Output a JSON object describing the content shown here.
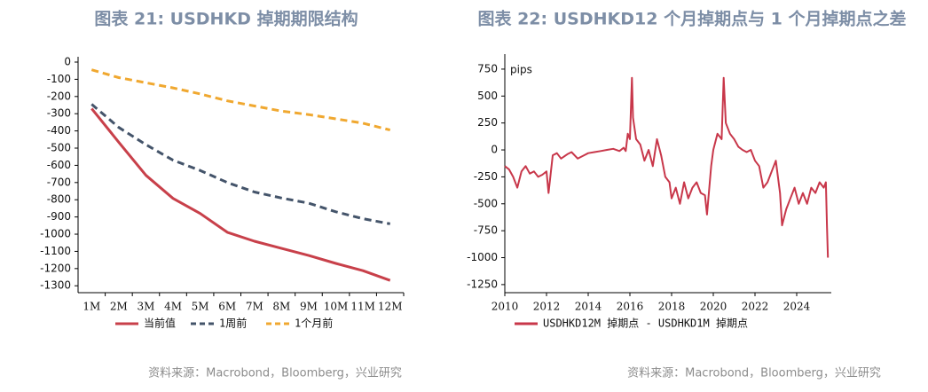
{
  "chart_data": [
    {
      "type": "line",
      "title": "图表 21: USDHKD 掉期期限结构",
      "categories": [
        "1M",
        "2M",
        "3M",
        "4M",
        "5M",
        "6M",
        "7M",
        "8M",
        "9M",
        "10M",
        "11M",
        "12M"
      ],
      "series": [
        {
          "name": "当前值",
          "color": "#c8404a",
          "dash": "solid",
          "values": [
            -270,
            -466,
            -658,
            -792,
            -880,
            -989,
            -1041,
            -1083,
            -1124,
            -1170,
            -1212,
            -1269
          ]
        },
        {
          "name": "1周前",
          "color": "#44546a",
          "dash": "dashed",
          "values": [
            -245,
            -380,
            -480,
            -570,
            -630,
            -700,
            -755,
            -790,
            -820,
            -870,
            -910,
            -940
          ]
        },
        {
          "name": "1个月前",
          "color": "#f0a830",
          "dash": "dashed",
          "values": [
            -45,
            -90,
            -120,
            -150,
            -185,
            -225,
            -255,
            -285,
            -305,
            -330,
            -355,
            -395
          ]
        }
      ],
      "ylim": [
        -1340,
        0
      ],
      "yticks": [
        0,
        -100,
        -200,
        -300,
        -400,
        -500,
        -600,
        -700,
        -800,
        -900,
        -1000,
        -1100,
        -1200,
        -1300
      ],
      "source": "资料来源：Macrobond，Bloomberg，兴业研究"
    },
    {
      "type": "line",
      "title": "图表 22: USDHKD12 个月掉期点与 1 个月掉期点之差",
      "y_label": "pips",
      "x": [
        2010.0,
        2010.2,
        2010.4,
        2010.6,
        2010.8,
        2011.0,
        2011.2,
        2011.4,
        2011.6,
        2011.8,
        2012.0,
        2012.1,
        2012.3,
        2012.5,
        2012.7,
        2013.0,
        2013.2,
        2013.5,
        2013.8,
        2014.0,
        2014.3,
        2014.6,
        2014.9,
        2015.2,
        2015.5,
        2015.7,
        2015.8,
        2015.9,
        2016.0,
        2016.1,
        2016.15,
        2016.3,
        2016.5,
        2016.7,
        2016.9,
        2017.1,
        2017.3,
        2017.5,
        2017.7,
        2017.9,
        2018.0,
        2018.2,
        2018.4,
        2018.6,
        2018.8,
        2019.0,
        2019.2,
        2019.4,
        2019.6,
        2019.7,
        2019.9,
        2020.0,
        2020.2,
        2020.4,
        2020.5,
        2020.6,
        2020.8,
        2021.0,
        2021.2,
        2021.4,
        2021.6,
        2021.8,
        2022.0,
        2022.2,
        2022.4,
        2022.6,
        2022.8,
        2023.0,
        2023.2,
        2023.3,
        2023.5,
        2023.7,
        2023.9,
        2024.1,
        2024.3,
        2024.5,
        2024.7,
        2024.9,
        2025.1,
        2025.3,
        2025.4,
        2025.45,
        2025.5
      ],
      "series": [
        {
          "name": "USDHKD12M 掉期点 - USDHKD1M 掉期点",
          "color": "#c8374a",
          "values": [
            -150,
            -180,
            -250,
            -350,
            -200,
            -150,
            -220,
            -200,
            -250,
            -230,
            -200,
            -400,
            -50,
            -30,
            -80,
            -40,
            -20,
            -80,
            -50,
            -30,
            -20,
            -10,
            0,
            10,
            -10,
            20,
            -10,
            150,
            100,
            670,
            300,
            100,
            50,
            -100,
            0,
            -150,
            100,
            -50,
            -250,
            -300,
            -450,
            -350,
            -500,
            -300,
            -450,
            -350,
            -300,
            -400,
            -420,
            -600,
            -150,
            0,
            150,
            100,
            670,
            250,
            150,
            100,
            30,
            0,
            -20,
            0,
            -100,
            -150,
            -350,
            -300,
            -200,
            -100,
            -400,
            -700,
            -550,
            -450,
            -350,
            -500,
            -400,
            -500,
            -350,
            -400,
            -300,
            -350,
            -300,
            -700,
            -1000
          ]
        }
      ],
      "xlim": [
        2010,
        2025.66
      ],
      "xticks": [
        2010,
        2012,
        2014,
        2016,
        2018,
        2020,
        2022,
        2024
      ],
      "ylim": [
        -1325,
        840
      ],
      "yticks": [
        750,
        500,
        250,
        0,
        -250,
        -500,
        -750,
        -1000,
        -1250
      ],
      "source": "资料来源：Macrobond，Bloomberg，兴业研究"
    }
  ]
}
